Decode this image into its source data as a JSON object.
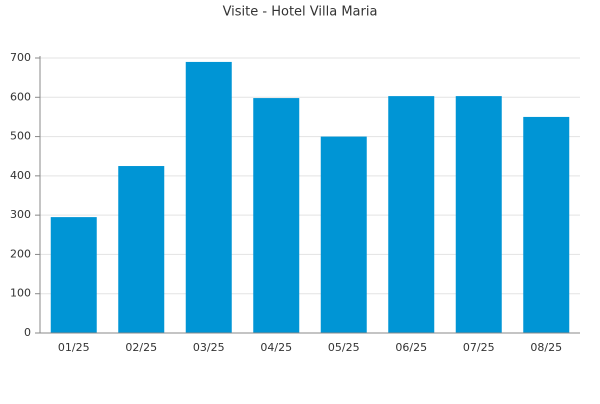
{
  "chart_data": {
    "type": "bar",
    "title": "Visite - Hotel Villa Maria",
    "categories": [
      "01/25",
      "02/25",
      "03/25",
      "04/25",
      "05/25",
      "06/25",
      "07/25",
      "08/25"
    ],
    "values": [
      295,
      425,
      690,
      598,
      500,
      603,
      603,
      550
    ],
    "color": "#0095d5",
    "ylim": [
      0,
      700
    ],
    "yticks": [
      0,
      100,
      200,
      300,
      400,
      500,
      600,
      700
    ],
    "grid": true
  }
}
